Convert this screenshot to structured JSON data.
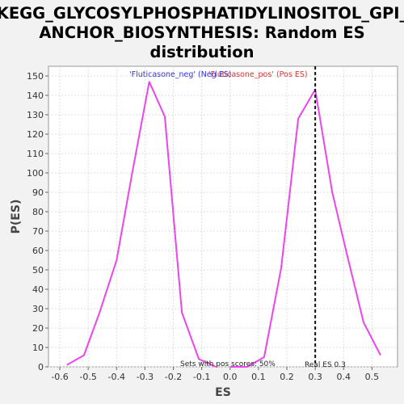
{
  "chart_data": {
    "type": "line",
    "title_lines": [
      "KEGG_GLYCOSYLPHOSPHATIDYLINOSITOL_GPI_",
      "ANCHOR_BIOSYNTHESIS: Random ES",
      "distribution"
    ],
    "xlabel": "ES",
    "ylabel": "P(ES)",
    "xlim": [
      -0.64,
      0.59
    ],
    "ylim": [
      0,
      155
    ],
    "xticks": [
      -0.6,
      -0.5,
      -0.4,
      -0.3,
      -0.2,
      -0.1,
      0.0,
      0.1,
      0.2,
      0.3,
      0.4,
      0.5
    ],
    "xtick_labels": [
      "-0.6",
      "-0.5",
      "-0.4",
      "-0.3",
      "-0.2",
      "-0.1",
      "0.0",
      "0.1",
      "0.2",
      "0.3",
      "0.4",
      "0.5"
    ],
    "yticks": [
      0,
      10,
      20,
      30,
      40,
      50,
      60,
      70,
      80,
      90,
      100,
      110,
      120,
      130,
      140,
      150
    ],
    "grid": true,
    "series": [
      {
        "name": "'Fluticasone_neg' (Neg ES)",
        "color": "#ee44ee",
        "x": [
          -0.575,
          -0.515,
          -0.46,
          -0.4,
          -0.345,
          -0.285,
          -0.23,
          -0.17,
          -0.11,
          -0.05
        ],
        "y": [
          1,
          6,
          28,
          55,
          100,
          147,
          129,
          28,
          4,
          0
        ]
      },
      {
        "name": "'Fluticasone_pos' (Pos ES)",
        "color": "#ee44ee",
        "x": [
          0.0,
          0.06,
          0.12,
          0.18,
          0.24,
          0.3,
          0.36,
          0.41,
          0.47,
          0.53
        ],
        "y": [
          0,
          0,
          5,
          51,
          128,
          143,
          90,
          59,
          23,
          6
        ]
      }
    ],
    "legend": [
      {
        "label": "'Fluticasone_neg' (Neg ES)",
        "color": "#3333dd"
      },
      {
        "label": "'Fluticasone_pos' (Pos ES)",
        "color": "#dd3333"
      }
    ],
    "legend_placement": "top-center",
    "real_es": 0.3,
    "real_es_label": "Real ES 0.3",
    "annotation": "Sets with pos scores: 50%"
  }
}
